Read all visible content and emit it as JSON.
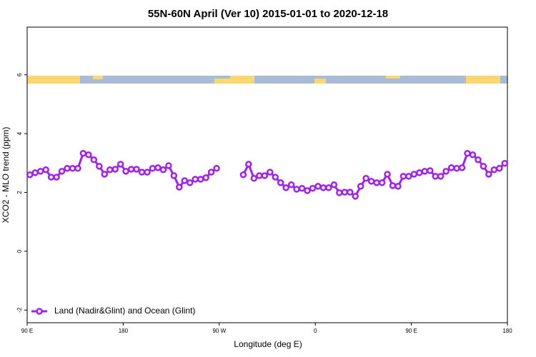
{
  "chart_data": {
    "type": "line",
    "title": "55N-60N April (Ver 10)   2015-01-01 to 2020-12-18",
    "x_label": "Longitude (deg E)",
    "y_label": "XCO2 - MLO trend (ppm)",
    "xlim": [
      90,
      540
    ],
    "ylim": [
      -2.43,
      7.62
    ],
    "xticks": [
      {
        "value": 90,
        "label": "90 E"
      },
      180,
      {
        "value": 270,
        "label": "90 W"
      },
      {
        "value": 360,
        "label": "0"
      },
      {
        "value": 450,
        "label": "90 E"
      },
      {
        "value": 540,
        "label": "180"
      }
    ],
    "yticks": [
      -2,
      0,
      2,
      4,
      6
    ],
    "legend": "bottom-left",
    "x": [
      92.5,
      97.5,
      102.5,
      107.5,
      112.5,
      117.5,
      122.5,
      127.5,
      132.5,
      137.5,
      142.5,
      147.5,
      152.5,
      157.5,
      162.5,
      167.5,
      172.5,
      177.5,
      182.5,
      187.5,
      192.5,
      197.5,
      202.5,
      207.5,
      212.5,
      217.5,
      222.5,
      227.5,
      232.5,
      237.5,
      242.5,
      247.5,
      252.5,
      257.5,
      262.5,
      267.5,
      272.5,
      277.5,
      282.5,
      287.5,
      292.5,
      297.5,
      302.5,
      307.5,
      312.5,
      317.5,
      322.5,
      327.5,
      332.5,
      337.5,
      342.5,
      347.5,
      352.5,
      357.5,
      362.5,
      367.5,
      372.5,
      377.5,
      382.5,
      387.5,
      392.5,
      397.5,
      402.5,
      407.5,
      412.5,
      417.5,
      422.5,
      427.5,
      432.5,
      437.5,
      442.5,
      447.5,
      452.5,
      457.5,
      462.5,
      467.5,
      472.5,
      477.5,
      482.5,
      487.5,
      492.5,
      497.5,
      502.5,
      507.5,
      512.5,
      517.5,
      522.5,
      527.5,
      532.5,
      537.5
    ],
    "series": [
      {
        "name": "Land (Nadir&Glint) and Ocean (Glint)",
        "color": "#a020f0",
        "values": [
          2.6,
          2.67,
          2.72,
          2.77,
          2.52,
          2.52,
          2.72,
          2.82,
          2.82,
          2.82,
          3.33,
          3.28,
          3.11,
          2.89,
          2.62,
          2.77,
          2.79,
          2.96,
          2.72,
          2.79,
          2.79,
          2.69,
          2.69,
          2.82,
          2.84,
          2.77,
          2.91,
          2.57,
          2.18,
          2.4,
          2.33,
          2.45,
          2.45,
          2.5,
          2.69,
          2.82,
          null,
          null,
          null,
          null,
          2.6,
          2.96,
          2.48,
          2.57,
          2.57,
          2.69,
          2.52,
          2.33,
          2.16,
          2.26,
          2.11,
          2.14,
          2.06,
          2.14,
          2.21,
          2.16,
          2.16,
          2.26,
          1.99,
          2.01,
          2.01,
          1.87,
          2.21,
          2.48,
          2.38,
          2.33,
          2.33,
          2.62,
          2.23,
          2.21,
          2.55,
          2.55,
          2.62,
          2.67,
          2.72,
          2.74,
          2.55,
          2.55,
          2.72,
          2.84,
          2.82,
          2.84,
          3.33,
          3.28,
          3.11,
          2.89,
          2.62,
          2.77,
          2.82,
          2.99
        ]
      }
    ]
  }
}
